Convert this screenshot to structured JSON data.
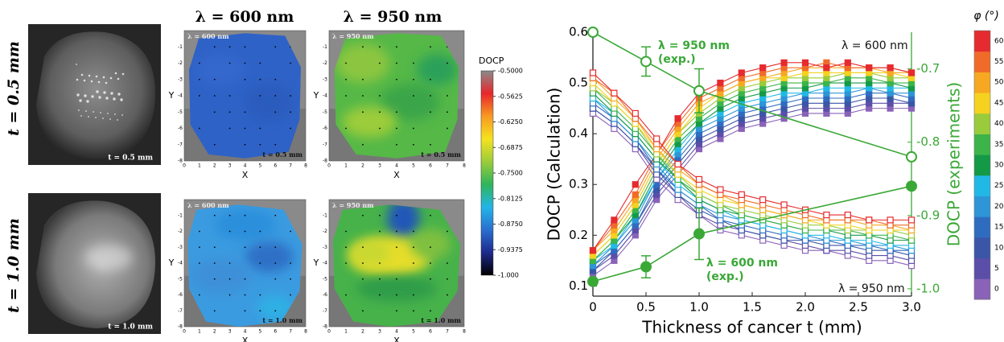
{
  "figure_a": {
    "row_labels": [
      "t = 0.5 mm",
      "t = 1.0 mm"
    ],
    "column_labels": [
      "λ = 600 nm",
      "λ = 950 nm"
    ],
    "photo_labels": [
      "t = 0.5 mm",
      "t = 1.0 mm"
    ],
    "map_insets": [
      [
        "λ = 600 nm",
        "t = 0.5 mm"
      ],
      [
        "λ = 950 nm",
        "t = 0.5 mm"
      ],
      [
        "λ = 600 nm",
        "t = 1.0 mm"
      ],
      [
        "λ = 950 nm",
        "t = 1.0 mm"
      ]
    ],
    "map_axes": {
      "x_label": "X",
      "y_label": "Y",
      "xlim": [
        0,
        8
      ],
      "ylim": [
        -8,
        0
      ],
      "xticks": [
        0,
        1,
        2,
        3,
        4,
        5,
        6,
        7,
        8
      ],
      "yticks": [
        -1,
        -2,
        -3,
        -4,
        -5,
        -6,
        -7,
        -8
      ]
    },
    "colorbar": {
      "title": "DOCP",
      "lim": [
        -1,
        -0.5
      ],
      "ticks": [
        {
          "value": -0.5,
          "label": "-0.5000"
        },
        -0.5625,
        {
          "value": -0.625,
          "label": "-0.6250"
        },
        -0.6875,
        {
          "value": -0.75,
          "label": "-0.7500"
        },
        -0.8125,
        {
          "value": -0.875,
          "label": "-0.8750"
        },
        -0.9375,
        {
          "value": -1,
          "label": "-1.000"
        }
      ],
      "colors": [
        "#000000",
        "#1e2a8c",
        "#2a6fd0",
        "#23b5e8",
        "#2fb55a",
        "#9ccc3a",
        "#f5e21e",
        "#f79a22",
        "#e8262b",
        "#8a8a8a"
      ]
    }
  },
  "chart_data": {
    "type": "line",
    "x_label": "Thickness of cancer t (mm)",
    "y_label": "DOCP  (Calculation)",
    "y2_label": "DOCP (experiments)",
    "x": [
      0,
      0.2,
      0.4,
      0.6,
      0.8,
      1.0,
      1.2,
      1.4,
      1.6,
      1.8,
      2.0,
      2.2,
      2.4,
      2.6,
      2.8,
      3.0
    ],
    "xlim": [
      0,
      3
    ],
    "xticks": [
      0,
      0.5,
      {
        "value": 1,
        "label": "1.0"
      },
      1.5,
      {
        "value": 2,
        "label": "2.0"
      },
      2.5,
      {
        "value": 3,
        "label": "3.0"
      }
    ],
    "ylim": [
      0.08,
      0.6
    ],
    "yticks": [
      0.1,
      0.2,
      0.3,
      0.4,
      0.5,
      0.6
    ],
    "y2lim": [
      -1.01,
      -0.65
    ],
    "y2ticks": [
      -0.7,
      -0.8,
      -0.9,
      {
        "value": -1,
        "label": "-1.0"
      }
    ],
    "y2_color": "#3aa836",
    "series": [
      {
        "color": "#8a63b8",
        "marker": "filled-square",
        "values": [
          0.12,
          0.15,
          0.2,
          0.27,
          0.32,
          0.37,
          0.39,
          0.41,
          0.42,
          0.43,
          0.44,
          0.44,
          0.44,
          0.45,
          0.45,
          0.45
        ]
      },
      {
        "color": "#5b4ea8",
        "marker": "filled-square",
        "values": [
          0.13,
          0.16,
          0.21,
          0.28,
          0.33,
          0.38,
          0.4,
          0.42,
          0.43,
          0.44,
          0.45,
          0.45,
          0.45,
          0.46,
          0.46,
          0.46
        ]
      },
      {
        "color": "#3b56a6",
        "marker": "filled-square",
        "values": [
          0.13,
          0.17,
          0.22,
          0.29,
          0.34,
          0.39,
          0.41,
          0.43,
          0.44,
          0.45,
          0.46,
          0.46,
          0.46,
          0.47,
          0.47,
          0.46
        ]
      },
      {
        "color": "#2f6cc0",
        "marker": "filled-square",
        "values": [
          0.14,
          0.17,
          0.22,
          0.3,
          0.35,
          0.4,
          0.42,
          0.44,
          0.45,
          0.46,
          0.47,
          0.47,
          0.47,
          0.48,
          0.48,
          0.47
        ]
      },
      {
        "color": "#2e95d6",
        "marker": "filled-square",
        "values": [
          0.14,
          0.18,
          0.23,
          0.31,
          0.36,
          0.41,
          0.43,
          0.45,
          0.46,
          0.47,
          0.48,
          0.48,
          0.48,
          0.49,
          0.48,
          0.48
        ]
      },
      {
        "color": "#22b8e6",
        "marker": "filled-square",
        "values": [
          0.15,
          0.18,
          0.24,
          0.31,
          0.37,
          0.42,
          0.44,
          0.46,
          0.47,
          0.48,
          0.48,
          0.49,
          0.49,
          0.49,
          0.49,
          0.49
        ]
      },
      {
        "color": "#149a47",
        "marker": "filled-square",
        "values": [
          0.15,
          0.19,
          0.24,
          0.32,
          0.38,
          0.42,
          0.45,
          0.47,
          0.48,
          0.49,
          0.49,
          0.5,
          0.5,
          0.5,
          0.5,
          0.49
        ]
      },
      {
        "color": "#3cb44a",
        "marker": "filled-square",
        "values": [
          0.15,
          0.19,
          0.25,
          0.33,
          0.39,
          0.43,
          0.46,
          0.48,
          0.49,
          0.5,
          0.5,
          0.5,
          0.51,
          0.51,
          0.5,
          0.5
        ]
      },
      {
        "color": "#9acb3c",
        "marker": "filled-square",
        "values": [
          0.16,
          0.2,
          0.26,
          0.34,
          0.4,
          0.44,
          0.47,
          0.49,
          0.5,
          0.51,
          0.51,
          0.51,
          0.52,
          0.52,
          0.51,
          0.51
        ]
      },
      {
        "color": "#f4d21f",
        "marker": "filled-square",
        "values": [
          0.16,
          0.2,
          0.26,
          0.34,
          0.4,
          0.45,
          0.48,
          0.5,
          0.51,
          0.51,
          0.52,
          0.52,
          0.52,
          0.52,
          0.52,
          0.51
        ]
      },
      {
        "color": "#f7a823",
        "marker": "filled-square",
        "values": [
          0.17,
          0.21,
          0.27,
          0.35,
          0.41,
          0.46,
          0.48,
          0.5,
          0.51,
          0.52,
          0.53,
          0.53,
          0.53,
          0.53,
          0.52,
          0.52
        ]
      },
      {
        "color": "#f06b2a",
        "marker": "filled-square",
        "values": [
          0.17,
          0.22,
          0.28,
          0.36,
          0.42,
          0.47,
          0.49,
          0.51,
          0.52,
          0.53,
          0.53,
          0.54,
          0.53,
          0.53,
          0.53,
          0.52
        ]
      },
      {
        "color": "#e52b2f",
        "marker": "filled-square",
        "values": [
          0.17,
          0.23,
          0.3,
          0.36,
          0.43,
          0.48,
          0.5,
          0.52,
          0.53,
          0.54,
          0.54,
          0.53,
          0.54,
          0.53,
          0.53,
          0.52
        ]
      },
      {
        "color": "#8a63b8",
        "marker": "open-square",
        "values": [
          0.44,
          0.41,
          0.37,
          0.31,
          0.27,
          0.24,
          0.21,
          0.2,
          0.19,
          0.18,
          0.17,
          0.17,
          0.16,
          0.15,
          0.15,
          0.14
        ]
      },
      {
        "color": "#5b4ea8",
        "marker": "open-square",
        "values": [
          0.45,
          0.42,
          0.38,
          0.32,
          0.28,
          0.24,
          0.22,
          0.21,
          0.2,
          0.19,
          0.18,
          0.17,
          0.17,
          0.16,
          0.16,
          0.15
        ]
      },
      {
        "color": "#3b56a6",
        "marker": "open-square",
        "values": [
          0.45,
          0.42,
          0.38,
          0.33,
          0.28,
          0.25,
          0.23,
          0.21,
          0.2,
          0.19,
          0.19,
          0.18,
          0.18,
          0.17,
          0.17,
          0.16
        ]
      },
      {
        "color": "#2f6cc0",
        "marker": "open-square",
        "values": [
          0.46,
          0.43,
          0.39,
          0.33,
          0.29,
          0.26,
          0.23,
          0.22,
          0.21,
          0.2,
          0.19,
          0.19,
          0.18,
          0.18,
          0.17,
          0.17
        ]
      },
      {
        "color": "#2e95d6",
        "marker": "open-square",
        "values": [
          0.47,
          0.43,
          0.39,
          0.34,
          0.29,
          0.26,
          0.24,
          0.23,
          0.22,
          0.21,
          0.2,
          0.19,
          0.19,
          0.18,
          0.18,
          0.17
        ]
      },
      {
        "color": "#22b8e6",
        "marker": "open-square",
        "values": [
          0.47,
          0.44,
          0.4,
          0.35,
          0.3,
          0.27,
          0.25,
          0.23,
          0.22,
          0.21,
          0.2,
          0.2,
          0.19,
          0.19,
          0.18,
          0.18
        ]
      },
      {
        "color": "#149a47",
        "marker": "open-square",
        "values": [
          0.48,
          0.44,
          0.4,
          0.35,
          0.31,
          0.27,
          0.25,
          0.24,
          0.23,
          0.22,
          0.21,
          0.21,
          0.2,
          0.2,
          0.19,
          0.19
        ]
      },
      {
        "color": "#3cb44a",
        "marker": "open-square",
        "values": [
          0.49,
          0.45,
          0.41,
          0.36,
          0.31,
          0.28,
          0.26,
          0.24,
          0.23,
          0.22,
          0.21,
          0.21,
          0.21,
          0.2,
          0.2,
          0.19
        ]
      },
      {
        "color": "#9acb3c",
        "marker": "open-square",
        "values": [
          0.49,
          0.46,
          0.42,
          0.36,
          0.32,
          0.28,
          0.26,
          0.25,
          0.24,
          0.23,
          0.22,
          0.22,
          0.21,
          0.21,
          0.21,
          0.2
        ]
      },
      {
        "color": "#f4d21f",
        "marker": "open-square",
        "values": [
          0.5,
          0.46,
          0.42,
          0.37,
          0.32,
          0.29,
          0.27,
          0.26,
          0.25,
          0.24,
          0.23,
          0.22,
          0.22,
          0.21,
          0.21,
          0.21
        ]
      },
      {
        "color": "#f7a823",
        "marker": "open-square",
        "values": [
          0.51,
          0.47,
          0.43,
          0.37,
          0.33,
          0.3,
          0.28,
          0.26,
          0.25,
          0.24,
          0.23,
          0.23,
          0.23,
          0.22,
          0.22,
          0.21
        ]
      },
      {
        "color": "#f06b2a",
        "marker": "open-square",
        "values": [
          0.51,
          0.48,
          0.43,
          0.38,
          0.34,
          0.3,
          0.28,
          0.27,
          0.26,
          0.25,
          0.24,
          0.23,
          0.23,
          0.23,
          0.22,
          0.22
        ]
      },
      {
        "color": "#e52b2f",
        "marker": "open-square",
        "values": [
          0.52,
          0.48,
          0.44,
          0.39,
          0.34,
          0.31,
          0.29,
          0.28,
          0.27,
          0.26,
          0.25,
          0.24,
          0.24,
          0.23,
          0.23,
          0.23
        ]
      },
      {
        "color": "#3aa836",
        "marker": "open-circle",
        "axis": "y2",
        "x": [
          0,
          0.5,
          1,
          3
        ],
        "values": [
          -0.65,
          -0.69,
          -0.73,
          -0.82
        ],
        "errors": [
          null,
          0.02,
          0.03,
          null
        ]
      },
      {
        "color": "#3aa836",
        "marker": "filled-circle",
        "axis": "y2",
        "x": [
          0,
          0.5,
          1,
          3
        ],
        "values": [
          -0.99,
          -0.97,
          -0.925,
          -0.86
        ],
        "errors": [
          null,
          0.015,
          0.035,
          null
        ]
      }
    ],
    "annotations": [
      {
        "lines": [
          "λ = 950 nm",
          "(exp.)"
        ],
        "color": "#3aa836"
      },
      {
        "lines": [
          "λ = 600 nm",
          "(exp.)"
        ],
        "color": "#3aa836"
      },
      {
        "lines": [
          "λ = 600 nm"
        ],
        "color": "#111111"
      },
      {
        "lines": [
          "λ = 950 nm"
        ],
        "color": "#111111"
      }
    ],
    "colorbar": {
      "title": "φ (°)",
      "ticks": [
        0,
        5,
        10,
        15,
        20,
        25,
        30,
        35,
        40,
        45,
        50,
        55,
        60
      ]
    }
  }
}
